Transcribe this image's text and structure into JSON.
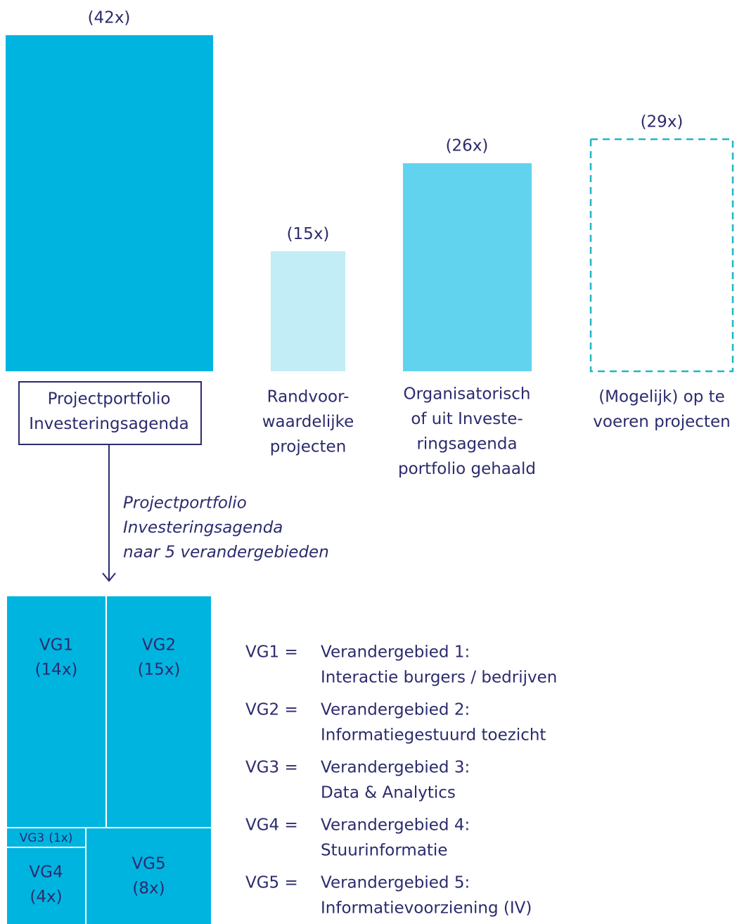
{
  "bars": [
    {
      "value": 42,
      "label": "(42x)",
      "name": [
        "Projectportfolio",
        "Investeringsagenda"
      ]
    },
    {
      "value": 15,
      "label": "(15x)",
      "name": [
        "Randvoor-",
        "waardelijke",
        "projecten"
      ]
    },
    {
      "value": 26,
      "label": "(26x)",
      "name": [
        "Organisatorisch",
        "of uit Investe-",
        "ringsagenda",
        "portfolio gehaald"
      ]
    },
    {
      "value": 29,
      "label": "(29x)",
      "name": [
        "(Mogelijk) op te",
        "voeren projecten"
      ]
    }
  ],
  "arrow_text": [
    "Projectportfolio",
    "Investeringsagenda",
    "naar 5 verandergebieden"
  ],
  "treemap": [
    {
      "name": "VG1",
      "value": 14,
      "label": "(14x)"
    },
    {
      "name": "VG2",
      "value": 15,
      "label": "(15x)"
    },
    {
      "name": "VG3",
      "value": 1,
      "label": "(1x)"
    },
    {
      "name": "VG4",
      "value": 4,
      "label": "(4x)"
    },
    {
      "name": "VG5",
      "value": 8,
      "label": "(8x)"
    }
  ],
  "legend": [
    {
      "key": "VG1 =",
      "lines": [
        "Verandergebied 1:",
        "Interactie burgers / bedrijven"
      ]
    },
    {
      "key": "VG2 =",
      "lines": [
        "Verandergebied 2:",
        "Informatiegestuurd toezicht"
      ]
    },
    {
      "key": "VG3 =",
      "lines": [
        "Verandergebied 3:",
        "Data & Analytics"
      ]
    },
    {
      "key": "VG4 =",
      "lines": [
        "Verandergebied 4:",
        "Stuurinformatie"
      ]
    },
    {
      "key": "VG5 =",
      "lines": [
        "Verandergebied 5:",
        "Informatievoorziening (IV)"
      ]
    }
  ]
}
